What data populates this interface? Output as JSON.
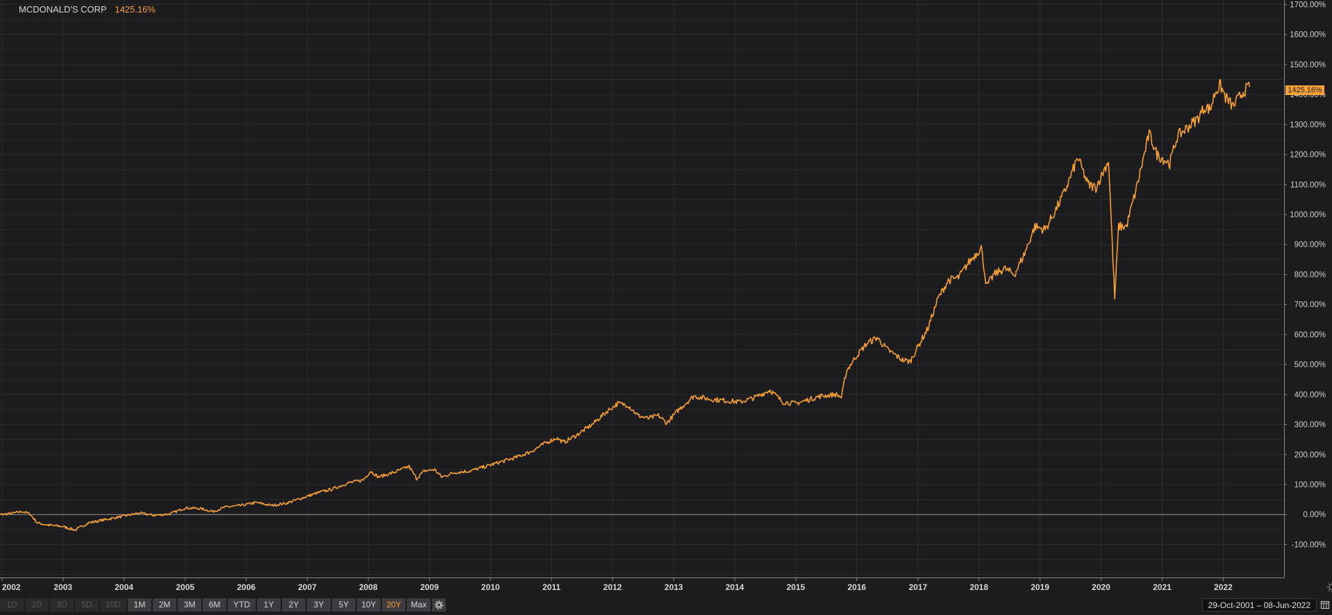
{
  "title": {
    "name": "MCDONALD'S CORP",
    "value": "1425.16%"
  },
  "last_value_badge": "1425.16%",
  "range_buttons": [
    {
      "label": "1D",
      "state": "disabled"
    },
    {
      "label": "2D",
      "state": "disabled"
    },
    {
      "label": "3D",
      "state": "disabled"
    },
    {
      "label": "5D",
      "state": "disabled"
    },
    {
      "label": "10D",
      "state": "disabled"
    },
    {
      "label": "1M",
      "state": "normal"
    },
    {
      "label": "2M",
      "state": "normal"
    },
    {
      "label": "3M",
      "state": "normal"
    },
    {
      "label": "6M",
      "state": "normal"
    },
    {
      "label": "YTD",
      "state": "normal"
    },
    {
      "label": "1Y",
      "state": "normal"
    },
    {
      "label": "2Y",
      "state": "normal"
    },
    {
      "label": "3Y",
      "state": "normal"
    },
    {
      "label": "5Y",
      "state": "normal"
    },
    {
      "label": "10Y",
      "state": "normal"
    },
    {
      "label": "20Y",
      "state": "active"
    },
    {
      "label": "Max",
      "state": "normal"
    }
  ],
  "settings_icon": "gear-icon",
  "date_range": "29-Oct-2001  –  08-Jun-2022",
  "colors": {
    "line": "#f7a033",
    "background": "#1c1c1f",
    "grid": "#2c2c30",
    "zero_line": "#9a9a9a",
    "active_button": "#f7a033"
  },
  "chart_data": {
    "type": "line",
    "series": [
      {
        "name": "MCDONALD'S CORP",
        "points": [
          [
            "2001-10-29",
            0
          ],
          [
            "2002-01-01",
            0
          ],
          [
            "2002-03-01",
            4
          ],
          [
            "2002-05-01",
            10
          ],
          [
            "2002-06-15",
            3
          ],
          [
            "2002-08-01",
            -28
          ],
          [
            "2002-10-01",
            -35
          ],
          [
            "2003-01-01",
            -40
          ],
          [
            "2003-03-15",
            -52
          ],
          [
            "2003-06-01",
            -28
          ],
          [
            "2003-09-01",
            -18
          ],
          [
            "2004-01-01",
            -5
          ],
          [
            "2004-04-01",
            5
          ],
          [
            "2004-07-01",
            -3
          ],
          [
            "2004-10-01",
            2
          ],
          [
            "2005-01-01",
            22
          ],
          [
            "2005-04-01",
            20
          ],
          [
            "2005-06-15",
            10
          ],
          [
            "2005-09-01",
            25
          ],
          [
            "2005-12-01",
            30
          ],
          [
            "2006-03-01",
            40
          ],
          [
            "2006-06-01",
            30
          ],
          [
            "2006-09-01",
            38
          ],
          [
            "2006-12-01",
            55
          ],
          [
            "2007-03-01",
            72
          ],
          [
            "2007-06-01",
            85
          ],
          [
            "2007-09-01",
            105
          ],
          [
            "2007-12-01",
            115
          ],
          [
            "2008-01-15",
            145
          ],
          [
            "2008-03-01",
            125
          ],
          [
            "2008-06-01",
            140
          ],
          [
            "2008-09-01",
            160
          ],
          [
            "2008-10-15",
            120
          ],
          [
            "2008-12-01",
            145
          ],
          [
            "2009-02-01",
            150
          ],
          [
            "2009-03-15",
            125
          ],
          [
            "2009-06-01",
            140
          ],
          [
            "2009-09-01",
            145
          ],
          [
            "2009-12-01",
            160
          ],
          [
            "2010-03-01",
            175
          ],
          [
            "2010-06-01",
            190
          ],
          [
            "2010-09-01",
            210
          ],
          [
            "2010-12-01",
            240
          ],
          [
            "2011-02-01",
            255
          ],
          [
            "2011-03-15",
            240
          ],
          [
            "2011-06-01",
            265
          ],
          [
            "2011-09-01",
            300
          ],
          [
            "2011-12-01",
            345
          ],
          [
            "2012-02-01",
            370
          ],
          [
            "2012-04-01",
            365
          ],
          [
            "2012-06-01",
            330
          ],
          [
            "2012-08-01",
            320
          ],
          [
            "2012-10-01",
            330
          ],
          [
            "2012-11-20",
            305
          ],
          [
            "2013-02-01",
            350
          ],
          [
            "2013-05-01",
            395
          ],
          [
            "2013-08-01",
            385
          ],
          [
            "2013-11-01",
            380
          ],
          [
            "2014-02-01",
            375
          ],
          [
            "2014-05-01",
            390
          ],
          [
            "2014-08-01",
            415
          ],
          [
            "2014-10-15",
            375
          ],
          [
            "2015-01-01",
            370
          ],
          [
            "2015-03-01",
            380
          ],
          [
            "2015-06-01",
            395
          ],
          [
            "2015-09-01",
            400
          ],
          [
            "2015-10-01",
            390
          ],
          [
            "2015-11-01",
            480
          ],
          [
            "2016-01-01",
            530
          ],
          [
            "2016-03-01",
            570
          ],
          [
            "2016-05-01",
            590
          ],
          [
            "2016-07-01",
            550
          ],
          [
            "2016-10-01",
            515
          ],
          [
            "2016-11-15",
            510
          ],
          [
            "2017-01-01",
            560
          ],
          [
            "2017-03-01",
            620
          ],
          [
            "2017-05-01",
            720
          ],
          [
            "2017-07-01",
            780
          ],
          [
            "2017-09-01",
            790
          ],
          [
            "2017-11-01",
            840
          ],
          [
            "2018-01-15",
            890
          ],
          [
            "2018-02-15",
            760
          ],
          [
            "2018-04-01",
            800
          ],
          [
            "2018-06-01",
            820
          ],
          [
            "2018-08-01",
            800
          ],
          [
            "2018-10-01",
            870
          ],
          [
            "2018-12-01",
            960
          ],
          [
            "2019-02-01",
            950
          ],
          [
            "2019-04-01",
            1010
          ],
          [
            "2019-06-01",
            1080
          ],
          [
            "2019-08-15",
            1190
          ],
          [
            "2019-10-15",
            1100
          ],
          [
            "2019-12-01",
            1090
          ],
          [
            "2020-02-15",
            1180
          ],
          [
            "2020-03-23",
            720
          ],
          [
            "2020-04-15",
            960
          ],
          [
            "2020-06-01",
            960
          ],
          [
            "2020-08-01",
            1090
          ],
          [
            "2020-10-15",
            1270
          ],
          [
            "2020-12-01",
            1200
          ],
          [
            "2021-02-15",
            1170
          ],
          [
            "2021-04-01",
            1260
          ],
          [
            "2021-06-01",
            1290
          ],
          [
            "2021-08-01",
            1320
          ],
          [
            "2021-09-15",
            1360
          ],
          [
            "2021-10-15",
            1350
          ],
          [
            "2021-11-15",
            1410
          ],
          [
            "2021-12-15",
            1430
          ],
          [
            "2022-01-15",
            1390
          ],
          [
            "2022-03-01",
            1360
          ],
          [
            "2022-05-01",
            1410
          ],
          [
            "2022-06-08",
            1425.16
          ]
        ]
      }
    ],
    "x_ticks": [
      "2002",
      "2003",
      "2004",
      "2005",
      "2006",
      "2007",
      "2008",
      "2009",
      "2010",
      "2011",
      "2012",
      "2013",
      "2014",
      "2015",
      "2016",
      "2017",
      "2018",
      "2019",
      "2020",
      "2021",
      "2022"
    ],
    "y_ticks": [
      "-100.00%",
      "0.00%",
      "100.00%",
      "200.00%",
      "300.00%",
      "400.00%",
      "500.00%",
      "600.00%",
      "700.00%",
      "800.00%",
      "900.00%",
      "1000.00%",
      "1100.00%",
      "1200.00%",
      "1300.00%",
      "1400.00%",
      "1500.00%",
      "1600.00%",
      "1700.00%"
    ],
    "xlim": [
      "2001-12-20",
      "2022-12-31"
    ],
    "ylim": [
      -210,
      1715
    ],
    "grid": true,
    "y_axis_side": "right"
  }
}
